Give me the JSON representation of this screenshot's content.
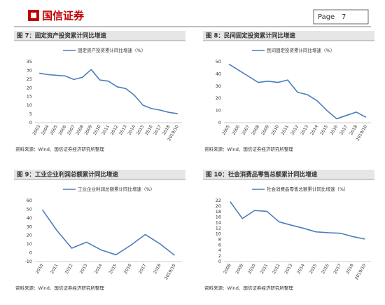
{
  "header": {
    "logo_text": "国信证券",
    "page_label": "Page",
    "page_number": 7
  },
  "chart_data": [
    {
      "type": "line",
      "title": "图 7：固定资产投资累计同比增速",
      "source": "资料来源：Wind、国信证券经济研究所整理",
      "categories": [
        "2003",
        "2004",
        "2005",
        "2006",
        "2007",
        "2008",
        "2009",
        "2010",
        "2011",
        "2012",
        "2013",
        "2014",
        "2015",
        "2016",
        "2017",
        "2018",
        "2019/10"
      ],
      "series": [
        {
          "name": "固定资产投资累计同比增速（%）",
          "color": "#4a7ebb",
          "values": [
            28.4,
            27.6,
            27.2,
            26.8,
            24.8,
            26.1,
            30.5,
            24.5,
            23.8,
            20.6,
            19.6,
            15.7,
            10.0,
            8.1,
            7.2,
            5.9,
            5.2
          ]
        }
      ],
      "ylim": [
        0,
        35
      ],
      "yticks": [
        0,
        5,
        10,
        15,
        20,
        25,
        30,
        35
      ]
    },
    {
      "type": "line",
      "title": "图 8：民间固定投资累计同比增速",
      "source": "资料来源：Wind、国信证券经济研究所整理",
      "categories": [
        "2005",
        "2006",
        "2007",
        "2008",
        "2009",
        "2010",
        "2011",
        "2012",
        "2013",
        "2014",
        "2015",
        "2016",
        "2017",
        "2018",
        "2019/10"
      ],
      "series": [
        {
          "name": "民间固定投资累计同比增速（%）",
          "color": "#4a7ebb",
          "values": [
            48,
            43,
            38,
            33,
            34,
            33,
            35,
            25,
            23,
            18,
            10,
            3.2,
            6,
            8.7,
            4.4
          ]
        }
      ],
      "ylim": [
        0,
        50
      ],
      "yticks": [
        0,
        10,
        20,
        30,
        40,
        50
      ]
    },
    {
      "type": "line",
      "title": "图 9：工业企业利润总额累计同比增速",
      "source": "资料来源：Wind、国信证券经济研究所整理",
      "categories": [
        "2010",
        "2011",
        "2012",
        "2013",
        "2014",
        "2015",
        "2016",
        "2017",
        "2018",
        "2019/10"
      ],
      "series": [
        {
          "name": "工业企业利润总额累计同比增速（%）",
          "color": "#4a7ebb",
          "values": [
            49.4,
            25.4,
            5.3,
            12.2,
            3.3,
            -2.3,
            8.5,
            21,
            10.3,
            -2.9
          ]
        }
      ],
      "ylim": [
        -10,
        60
      ],
      "yticks": [
        -10,
        0,
        10,
        20,
        30,
        40,
        50,
        60
      ]
    },
    {
      "type": "line",
      "title": "图 10：社会消费品零售总额累计同比增速",
      "source": "资料来源：Wind、国信证券经济研究所整理",
      "categories": [
        "2008",
        "2009",
        "2010",
        "2011",
        "2012",
        "2013",
        "2014",
        "2015",
        "2016",
        "2017",
        "2018",
        "2019/10"
      ],
      "series": [
        {
          "name": "社会消费品零售总额累计同比增速（%）",
          "color": "#4a7ebb",
          "values": [
            21.6,
            15.5,
            18.4,
            18.1,
            14.3,
            13.1,
            12.0,
            10.7,
            10.4,
            10.2,
            9.0,
            8.1
          ]
        }
      ],
      "ylim": [
        0,
        22
      ],
      "yticks": [
        0,
        2,
        4,
        6,
        8,
        10,
        12,
        14,
        16,
        18,
        20,
        22
      ]
    }
  ]
}
